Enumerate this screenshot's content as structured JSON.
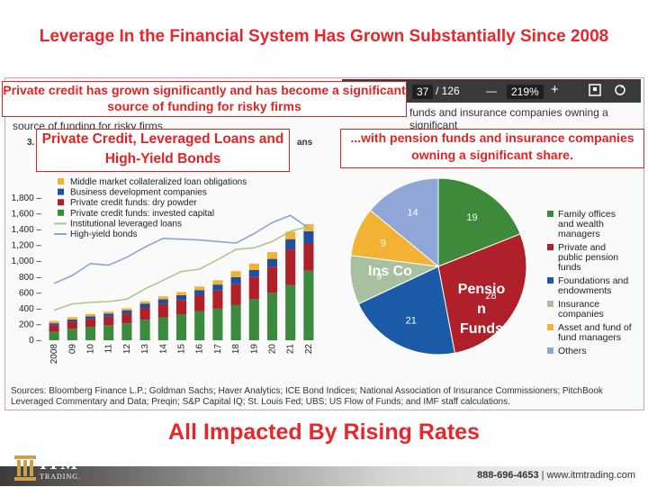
{
  "title": "Leverage In the Financial System Has Grown Substantially Since 2008",
  "callouts": {
    "top": "Private credit has grown significantly and has become a significant source of funding for risky firms",
    "left": "Private Credit, Leveraged Loans and High-Yield Bonds",
    "right": "...with pension funds and insurance companies owning a significant share."
  },
  "toolbar": {
    "page": "37",
    "of": "/ 126",
    "zoom": "219%",
    "minus": "—",
    "plus": "+"
  },
  "doc_text": {
    "strip_right": "funds and insurance companies owning a significant",
    "strip_left": "source of funding for risky firms",
    "fig_num": "3.",
    "fig_suffix": "ans"
  },
  "sources": "Sources: Bloomberg Finance L.P.; Goldman Sachs; Haver Analytics; ICE Bond Indices; National Association of Insurance Commissioners; PitchBook Leveraged Commentary and Data; Preqin; S&P Capital IQ; St. Louis Fed; UBS; US Flow of Funds; and IMF staff calculations.",
  "bottom_headline": "All Impacted By Rising Rates",
  "footer": {
    "phone": "888-696-4653",
    "separator": "|",
    "url": "www.itmtrading.com",
    "logo": "ITM",
    "logo_sub": "TRADING."
  },
  "chart_data": [
    {
      "type": "bar",
      "stacked": true,
      "categories": [
        "2008",
        "09",
        "10",
        "11",
        "12",
        "13",
        "14",
        "15",
        "16",
        "17",
        "18",
        "19",
        "20",
        "21",
        "22"
      ],
      "ylim": [
        0,
        1800
      ],
      "yticks": [
        0,
        200,
        400,
        600,
        800,
        1000,
        1200,
        1400,
        1600,
        1800
      ],
      "ytick_labels": [
        "0 –",
        "200 –",
        "400 –",
        "600 –",
        "800 –",
        "1,000 –",
        "1,200 –",
        "1,400 –",
        "1,600 –",
        "1,800 –"
      ],
      "series": [
        {
          "name": "Private credit funds: invested capital",
          "color": "#3b8a3e",
          "values": [
            110,
            145,
            170,
            190,
            215,
            260,
            290,
            330,
            370,
            400,
            450,
            520,
            600,
            700,
            880
          ]
        },
        {
          "name": "Private credit funds: dry powder",
          "color": "#b0202a",
          "values": [
            80,
            90,
            100,
            110,
            120,
            150,
            170,
            180,
            200,
            230,
            260,
            280,
            330,
            450,
            350
          ]
        },
        {
          "name": "Business development companies",
          "color": "#1f4f9e",
          "values": [
            25,
            28,
            33,
            38,
            45,
            55,
            60,
            60,
            65,
            75,
            90,
            90,
            100,
            130,
            150
          ]
        },
        {
          "name": "Middle market collateralized loan obligations",
          "color": "#f2b233",
          "values": [
            30,
            30,
            30,
            25,
            25,
            30,
            35,
            40,
            45,
            55,
            75,
            80,
            85,
            95,
            90
          ]
        }
      ],
      "lines": [
        {
          "name": "Institutional leveraged loans",
          "color": "#a9c98b",
          "values": [
            380,
            460,
            480,
            490,
            520,
            650,
            760,
            870,
            900,
            1020,
            1150,
            1170,
            1250,
            1380,
            1440
          ]
        },
        {
          "name": "High-yield bonds",
          "color": "#8aa5d2",
          "values": [
            720,
            820,
            970,
            950,
            1050,
            1180,
            1290,
            1280,
            1270,
            1250,
            1230,
            1350,
            1490,
            1580,
            1420
          ]
        }
      ]
    },
    {
      "type": "pie",
      "slices": [
        {
          "label": "Family offices and wealth managers",
          "value": 19,
          "color": "#3e8a3a"
        },
        {
          "label": "Private and public pension funds",
          "value": 28,
          "color": "#b0202a"
        },
        {
          "label": "Foundations and endowments",
          "value": 21,
          "color": "#1a5aa6"
        },
        {
          "label": "Insurance companies",
          "value": 9,
          "color": "#a9c0a0"
        },
        {
          "label": "Asset and fund of fund managers",
          "value": 9,
          "color": "#f2b233"
        },
        {
          "label": "Others",
          "value": 14,
          "color": "#8fa6d6"
        }
      ],
      "overlay_labels": {
        "insurance": "Ins Co",
        "pension": [
          "Pensio",
          "n",
          "Funds"
        ]
      }
    }
  ]
}
